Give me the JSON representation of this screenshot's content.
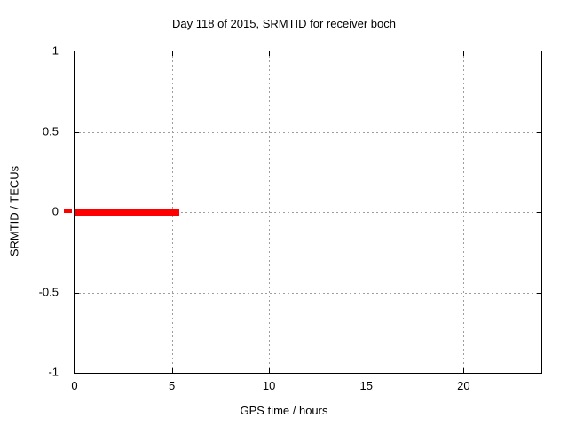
{
  "chart_data": {
    "type": "line",
    "title": "Day 118 of 2015, SRMTID for receiver boch",
    "xlabel": "GPS time / hours",
    "ylabel": "SRMTID / TECUs",
    "xlim": [
      0,
      24
    ],
    "ylim": [
      -1,
      1
    ],
    "xticks": [
      0,
      5,
      10,
      15,
      20
    ],
    "yticks": [
      1,
      0.5,
      0,
      -0.5,
      -1
    ],
    "grid": true,
    "grid_style": "dashed",
    "grid_color": "#9e9e9e",
    "border_color": "#000000",
    "background_color": "#ffffff",
    "legend": "none",
    "series": [
      {
        "name": "SRMTID",
        "color": "#ff0000",
        "style": "thick-line",
        "x": [
          0,
          5.4
        ],
        "y": [
          0,
          0
        ]
      }
    ]
  }
}
